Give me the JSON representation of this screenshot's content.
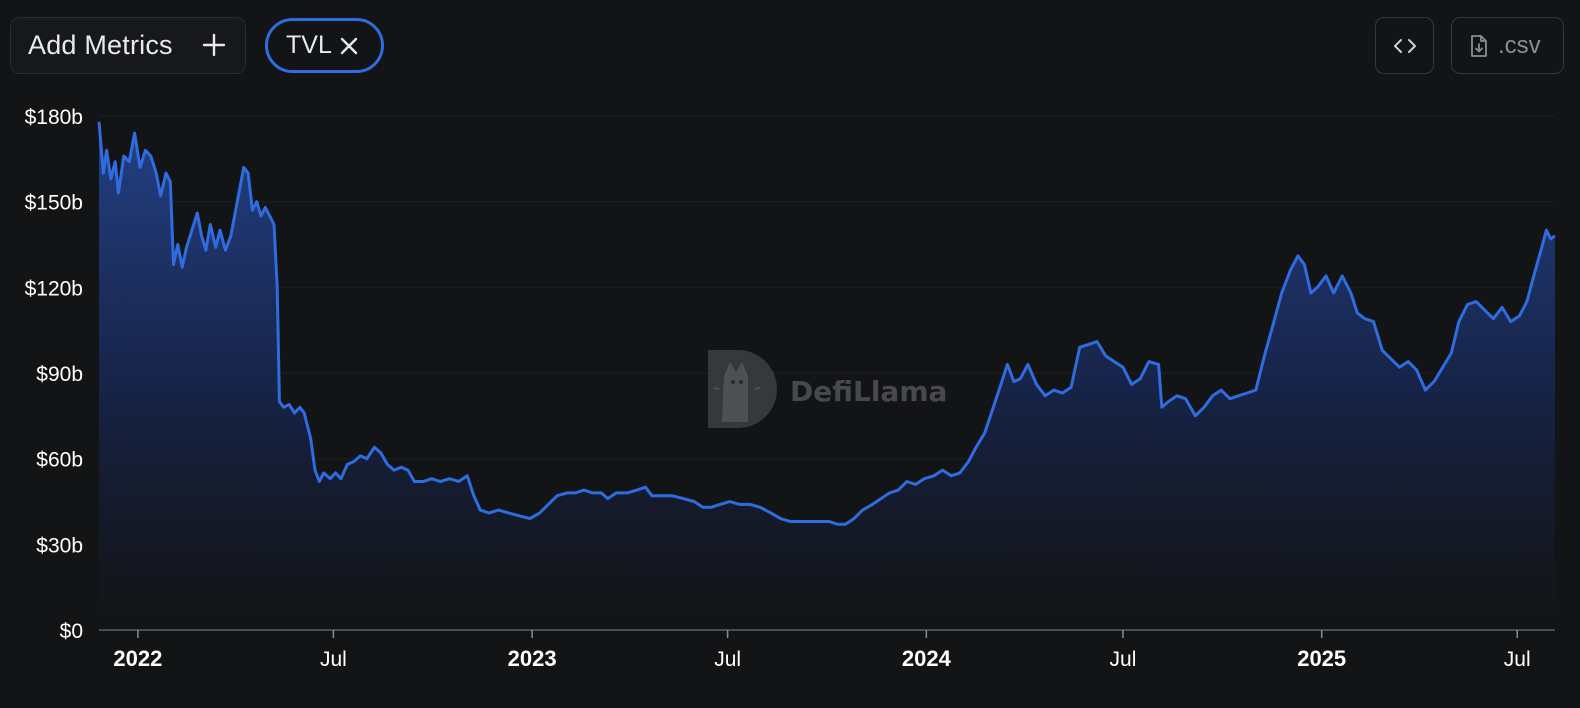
{
  "toolbar": {
    "add_metrics_label": "Add Metrics",
    "active_metric_label": "TVL",
    "csv_label": ".csv"
  },
  "icons": {
    "add": "plus-icon",
    "remove": "close-icon",
    "embed": "code-icon",
    "download": "file-download-icon"
  },
  "watermark": {
    "text": "DefiLlama"
  },
  "colors": {
    "background": "#131416",
    "line": "#2f6ce0",
    "area_top": "#24428a",
    "chip_border": "#2f6ce0"
  },
  "chart_data": {
    "type": "area",
    "ylim": [
      0,
      180
    ],
    "y_ticks": [
      {
        "value": 0,
        "label": "$0"
      },
      {
        "value": 30,
        "label": "$30b"
      },
      {
        "value": 60,
        "label": "$60b"
      },
      {
        "value": 90,
        "label": "$90b"
      },
      {
        "value": 120,
        "label": "$120b"
      },
      {
        "value": 150,
        "label": "$150b"
      },
      {
        "value": 180,
        "label": "$180b"
      }
    ],
    "x_ticks": [
      {
        "date": "2022-01-01",
        "label": "2022",
        "bold": true
      },
      {
        "date": "2022-07-01",
        "label": "Jul",
        "bold": false
      },
      {
        "date": "2023-01-01",
        "label": "2023",
        "bold": true
      },
      {
        "date": "2023-07-01",
        "label": "Jul",
        "bold": false
      },
      {
        "date": "2024-01-01",
        "label": "2024",
        "bold": true
      },
      {
        "date": "2024-07-01",
        "label": "Jul",
        "bold": false
      },
      {
        "date": "2025-01-01",
        "label": "2025",
        "bold": true
      },
      {
        "date": "2025-07-01",
        "label": "Jul",
        "bold": false
      }
    ],
    "xlim": [
      "2021-11-26",
      "2025-08-05"
    ],
    "grid": true,
    "series": [
      {
        "name": "TVL",
        "points": [
          [
            "2021-11-26",
            178
          ],
          [
            "2021-11-30",
            160
          ],
          [
            "2021-12-03",
            168
          ],
          [
            "2021-12-07",
            158
          ],
          [
            "2021-12-11",
            164
          ],
          [
            "2021-12-14",
            153
          ],
          [
            "2021-12-19",
            166
          ],
          [
            "2021-12-24",
            164
          ],
          [
            "2021-12-29",
            174
          ],
          [
            "2022-01-03",
            162
          ],
          [
            "2022-01-08",
            168
          ],
          [
            "2022-01-13",
            166
          ],
          [
            "2022-01-18",
            160
          ],
          [
            "2022-01-22",
            152
          ],
          [
            "2022-01-27",
            160
          ],
          [
            "2022-01-31",
            157
          ],
          [
            "2022-02-03",
            128
          ],
          [
            "2022-02-07",
            135
          ],
          [
            "2022-02-11",
            127
          ],
          [
            "2022-02-15",
            134
          ],
          [
            "2022-02-20",
            140
          ],
          [
            "2022-02-25",
            146
          ],
          [
            "2022-03-01",
            138
          ],
          [
            "2022-03-05",
            133
          ],
          [
            "2022-03-09",
            142
          ],
          [
            "2022-03-14",
            134
          ],
          [
            "2022-03-18",
            140
          ],
          [
            "2022-03-23",
            133
          ],
          [
            "2022-03-28",
            138
          ],
          [
            "2022-04-01",
            146
          ],
          [
            "2022-04-06",
            156
          ],
          [
            "2022-04-09",
            162
          ],
          [
            "2022-04-13",
            160
          ],
          [
            "2022-04-17",
            147
          ],
          [
            "2022-04-21",
            150
          ],
          [
            "2022-04-25",
            145
          ],
          [
            "2022-04-29",
            148
          ],
          [
            "2022-05-03",
            145
          ],
          [
            "2022-05-07",
            142
          ],
          [
            "2022-05-10",
            120
          ],
          [
            "2022-05-12",
            80
          ],
          [
            "2022-05-16",
            78
          ],
          [
            "2022-05-21",
            79
          ],
          [
            "2022-05-26",
            76
          ],
          [
            "2022-05-31",
            78
          ],
          [
            "2022-06-04",
            76
          ],
          [
            "2022-06-10",
            67
          ],
          [
            "2022-06-14",
            56
          ],
          [
            "2022-06-18",
            52
          ],
          [
            "2022-06-22",
            55
          ],
          [
            "2022-06-28",
            53
          ],
          [
            "2022-07-03",
            55
          ],
          [
            "2022-07-08",
            53
          ],
          [
            "2022-07-14",
            58
          ],
          [
            "2022-07-20",
            59
          ],
          [
            "2022-07-26",
            61
          ],
          [
            "2022-08-01",
            60
          ],
          [
            "2022-08-08",
            64
          ],
          [
            "2022-08-14",
            62
          ],
          [
            "2022-08-20",
            58
          ],
          [
            "2022-08-26",
            56
          ],
          [
            "2022-09-02",
            57
          ],
          [
            "2022-09-08",
            56
          ],
          [
            "2022-09-14",
            52
          ],
          [
            "2022-09-22",
            52
          ],
          [
            "2022-09-30",
            53
          ],
          [
            "2022-10-08",
            52
          ],
          [
            "2022-10-17",
            53
          ],
          [
            "2022-10-25",
            52
          ],
          [
            "2022-11-02",
            54
          ],
          [
            "2022-11-08",
            47
          ],
          [
            "2022-11-14",
            42
          ],
          [
            "2022-11-22",
            41
          ],
          [
            "2022-12-01",
            42
          ],
          [
            "2022-12-10",
            41
          ],
          [
            "2022-12-20",
            40
          ],
          [
            "2022-12-30",
            39
          ],
          [
            "2023-01-08",
            41
          ],
          [
            "2023-01-16",
            44
          ],
          [
            "2023-01-24",
            47
          ],
          [
            "2023-02-02",
            48
          ],
          [
            "2023-02-10",
            48
          ],
          [
            "2023-02-18",
            49
          ],
          [
            "2023-02-26",
            48
          ],
          [
            "2023-03-06",
            48
          ],
          [
            "2023-03-12",
            46
          ],
          [
            "2023-03-20",
            48
          ],
          [
            "2023-03-30",
            48
          ],
          [
            "2023-04-08",
            49
          ],
          [
            "2023-04-16",
            50
          ],
          [
            "2023-04-22",
            47
          ],
          [
            "2023-05-01",
            47
          ],
          [
            "2023-05-11",
            47
          ],
          [
            "2023-05-21",
            46
          ],
          [
            "2023-05-31",
            45
          ],
          [
            "2023-06-08",
            43
          ],
          [
            "2023-06-16",
            43
          ],
          [
            "2023-06-24",
            44
          ],
          [
            "2023-07-03",
            45
          ],
          [
            "2023-07-12",
            44
          ],
          [
            "2023-07-22",
            44
          ],
          [
            "2023-07-31",
            43
          ],
          [
            "2023-08-10",
            41
          ],
          [
            "2023-08-19",
            39
          ],
          [
            "2023-08-28",
            38
          ],
          [
            "2023-09-06",
            38
          ],
          [
            "2023-09-15",
            38
          ],
          [
            "2023-09-24",
            38
          ],
          [
            "2023-10-03",
            38
          ],
          [
            "2023-10-11",
            37
          ],
          [
            "2023-10-18",
            37
          ],
          [
            "2023-10-26",
            39
          ],
          [
            "2023-11-03",
            42
          ],
          [
            "2023-11-12",
            44
          ],
          [
            "2023-11-20",
            46
          ],
          [
            "2023-11-28",
            48
          ],
          [
            "2023-12-06",
            49
          ],
          [
            "2023-12-14",
            52
          ],
          [
            "2023-12-22",
            51
          ],
          [
            "2023-12-30",
            53
          ],
          [
            "2024-01-08",
            54
          ],
          [
            "2024-01-16",
            56
          ],
          [
            "2024-01-24",
            54
          ],
          [
            "2024-02-01",
            55
          ],
          [
            "2024-02-09",
            59
          ],
          [
            "2024-02-16",
            64
          ],
          [
            "2024-02-24",
            69
          ],
          [
            "2024-03-03",
            78
          ],
          [
            "2024-03-10",
            86
          ],
          [
            "2024-03-16",
            93
          ],
          [
            "2024-03-22",
            87
          ],
          [
            "2024-03-28",
            88
          ],
          [
            "2024-04-04",
            93
          ],
          [
            "2024-04-12",
            86
          ],
          [
            "2024-04-20",
            82
          ],
          [
            "2024-04-28",
            84
          ],
          [
            "2024-05-06",
            83
          ],
          [
            "2024-05-14",
            85
          ],
          [
            "2024-05-22",
            99
          ],
          [
            "2024-05-30",
            100
          ],
          [
            "2024-06-07",
            101
          ],
          [
            "2024-06-15",
            96
          ],
          [
            "2024-06-23",
            94
          ],
          [
            "2024-07-01",
            92
          ],
          [
            "2024-07-09",
            86
          ],
          [
            "2024-07-17",
            88
          ],
          [
            "2024-07-25",
            94
          ],
          [
            "2024-08-03",
            93
          ],
          [
            "2024-08-06",
            78
          ],
          [
            "2024-08-12",
            80
          ],
          [
            "2024-08-20",
            82
          ],
          [
            "2024-08-28",
            81
          ],
          [
            "2024-09-06",
            75
          ],
          [
            "2024-09-14",
            78
          ],
          [
            "2024-09-22",
            82
          ],
          [
            "2024-09-30",
            84
          ],
          [
            "2024-10-08",
            81
          ],
          [
            "2024-10-16",
            82
          ],
          [
            "2024-10-24",
            83
          ],
          [
            "2024-11-01",
            84
          ],
          [
            "2024-11-09",
            96
          ],
          [
            "2024-11-17",
            107
          ],
          [
            "2024-11-25",
            118
          ],
          [
            "2024-12-03",
            126
          ],
          [
            "2024-12-10",
            131
          ],
          [
            "2024-12-16",
            128
          ],
          [
            "2024-12-22",
            118
          ],
          [
            "2024-12-28",
            120
          ],
          [
            "2025-01-05",
            124
          ],
          [
            "2025-01-12",
            118
          ],
          [
            "2025-01-20",
            124
          ],
          [
            "2025-01-28",
            118
          ],
          [
            "2025-02-03",
            111
          ],
          [
            "2025-02-10",
            109
          ],
          [
            "2025-02-18",
            108
          ],
          [
            "2025-02-26",
            98
          ],
          [
            "2025-03-06",
            95
          ],
          [
            "2025-03-14",
            92
          ],
          [
            "2025-03-22",
            94
          ],
          [
            "2025-03-30",
            91
          ],
          [
            "2025-04-07",
            84
          ],
          [
            "2025-04-15",
            87
          ],
          [
            "2025-04-23",
            92
          ],
          [
            "2025-05-01",
            97
          ],
          [
            "2025-05-08",
            108
          ],
          [
            "2025-05-16",
            114
          ],
          [
            "2025-05-24",
            115
          ],
          [
            "2025-06-01",
            112
          ],
          [
            "2025-06-09",
            109
          ],
          [
            "2025-06-17",
            113
          ],
          [
            "2025-06-25",
            108
          ],
          [
            "2025-07-03",
            110
          ],
          [
            "2025-07-10",
            115
          ],
          [
            "2025-07-17",
            125
          ],
          [
            "2025-07-23",
            133
          ],
          [
            "2025-07-28",
            140
          ],
          [
            "2025-08-01",
            137
          ],
          [
            "2025-08-05",
            138
          ]
        ]
      }
    ]
  }
}
